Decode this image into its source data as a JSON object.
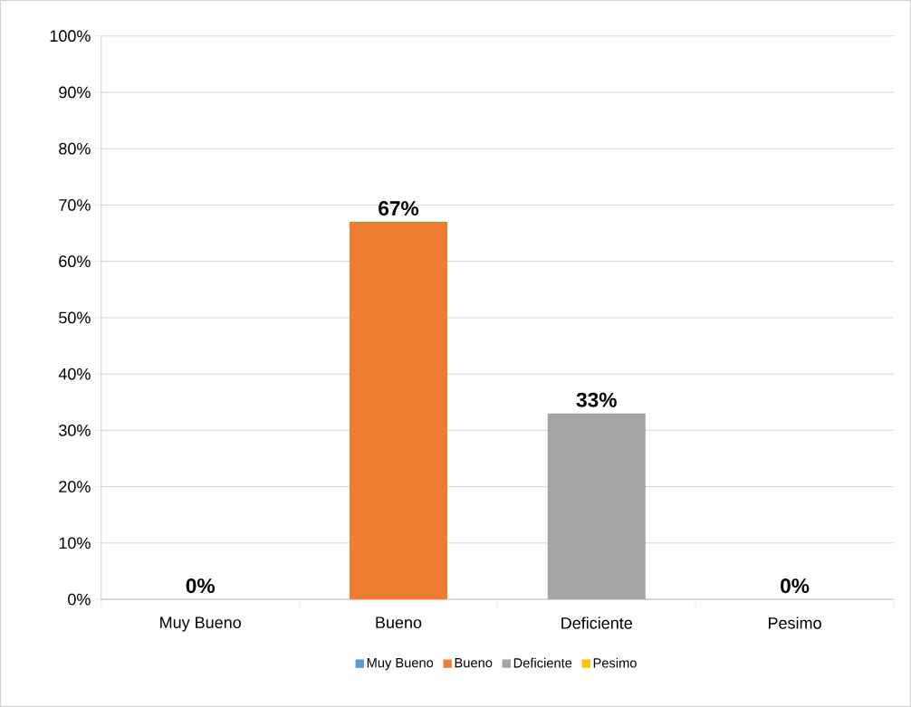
{
  "chart_data": {
    "type": "bar",
    "categories": [
      "Muy Bueno",
      "Bueno",
      "Deficiente",
      "Pesimo"
    ],
    "series": [
      {
        "name": "Muy Bueno",
        "color": "#5b9bd5",
        "values": [
          0,
          null,
          null,
          null
        ],
        "value_labels": [
          "0%",
          null,
          null,
          null
        ]
      },
      {
        "name": "Bueno",
        "color": "#ed7d31",
        "values": [
          null,
          67,
          null,
          null
        ],
        "value_labels": [
          null,
          "67%",
          null,
          null
        ]
      },
      {
        "name": "Deficiente",
        "color": "#a5a5a5",
        "values": [
          null,
          null,
          33,
          null
        ],
        "value_labels": [
          null,
          null,
          "33%",
          null
        ]
      },
      {
        "name": "Pesimo",
        "color": "#ffc000",
        "values": [
          null,
          null,
          null,
          0
        ],
        "value_labels": [
          null,
          null,
          null,
          "0%"
        ]
      }
    ],
    "ylim": [
      0,
      100
    ],
    "yticks": [
      {
        "value": 0,
        "label": "0%"
      },
      {
        "value": 10,
        "label": "10%"
      },
      {
        "value": 20,
        "label": "20%"
      },
      {
        "value": 30,
        "label": "30%"
      },
      {
        "value": 40,
        "label": "40%"
      },
      {
        "value": 50,
        "label": "50%"
      },
      {
        "value": 60,
        "label": "60%"
      },
      {
        "value": 70,
        "label": "70%"
      },
      {
        "value": 80,
        "label": "80%"
      },
      {
        "value": 90,
        "label": "90%"
      },
      {
        "value": 100,
        "label": "100%"
      }
    ],
    "grid": "y",
    "legend": "bottom"
  }
}
